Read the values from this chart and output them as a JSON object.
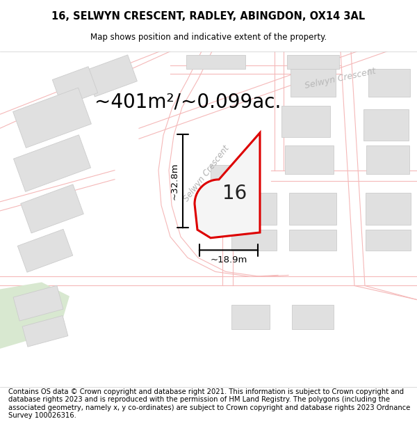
{
  "title_line1": "16, SELWYN CRESCENT, RADLEY, ABINGDON, OX14 3AL",
  "title_line2": "Map shows position and indicative extent of the property.",
  "footer": "Contains OS data © Crown copyright and database right 2021. This information is subject to Crown copyright and database rights 2023 and is reproduced with the permission of HM Land Registry. The polygons (including the associated geometry, namely x, y co-ordinates) are subject to Crown copyright and database rights 2023 Ordnance Survey 100026316.",
  "area_text": "~401m²/~0.099ac.",
  "dim_vertical": "~32.8m",
  "dim_horizontal": "~18.9m",
  "plot_label": "16",
  "road_label_center": "Selwyn Crescent",
  "road_label_upper": "Selwyn Crescent",
  "map_bg": "#ffffff",
  "plot_fill": "#f0f0f0",
  "plot_edge": "#dd0000",
  "road_color": "#f5b8b8",
  "building_color": "#e0e0e0",
  "building_edge": "#cccccc",
  "title_fontsize": 10.5,
  "footer_fontsize": 7.2,
  "area_fontsize": 20,
  "dim_fontsize": 9.5,
  "label_fontsize": 20
}
